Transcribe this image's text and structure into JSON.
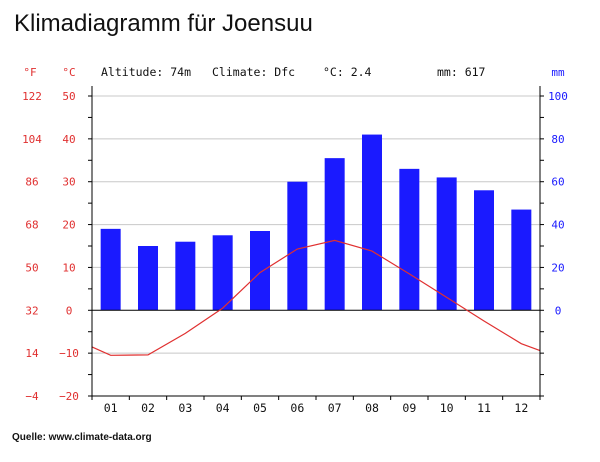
{
  "title": "Klimadiagramm für Joensuu",
  "source": "Quelle: www.climate-data.org",
  "chart_data": {
    "type": "bar",
    "categories": [
      "01",
      "02",
      "03",
      "04",
      "05",
      "06",
      "07",
      "08",
      "09",
      "10",
      "11",
      "12"
    ],
    "info": {
      "altitude": "Altitude: 74m",
      "climate": "Climate: Dfc",
      "temp": "°C: 2.4",
      "precip": "mm: 617"
    },
    "units": {
      "fahrenheit": "°F",
      "celsius": "°C",
      "mm": "mm"
    },
    "celsius_ticks": [
      "50",
      "40",
      "30",
      "20",
      "10",
      "0",
      "−10",
      "−20"
    ],
    "fahrenheit_ticks": [
      "122",
      "104",
      "86",
      "68",
      "50",
      "32",
      "14",
      "−4"
    ],
    "mm_ticks": [
      "100",
      "80",
      "60",
      "40",
      "20",
      "0"
    ],
    "temp_ylim": [
      -20,
      50
    ],
    "precip_ylim": [
      0,
      100
    ],
    "series": [
      {
        "values": [
          38,
          30,
          32,
          35,
          37,
          60,
          71,
          82,
          66,
          62,
          56,
          47
        ],
        "color": "#1a1aff",
        "axis": "mm"
      },
      {
        "values": [
          -10.5,
          -10.4,
          -5.4,
          0.5,
          8.8,
          14.3,
          16.3,
          13.8,
          8.5,
          3.0,
          -2.5,
          -7.8
        ],
        "color": "#e03030",
        "axis": "celsius"
      }
    ],
    "colors": {
      "temperature": "#e03030",
      "precipitation": "#1a1aff",
      "grid": "#c8c8c8",
      "axis": "#000000"
    }
  }
}
